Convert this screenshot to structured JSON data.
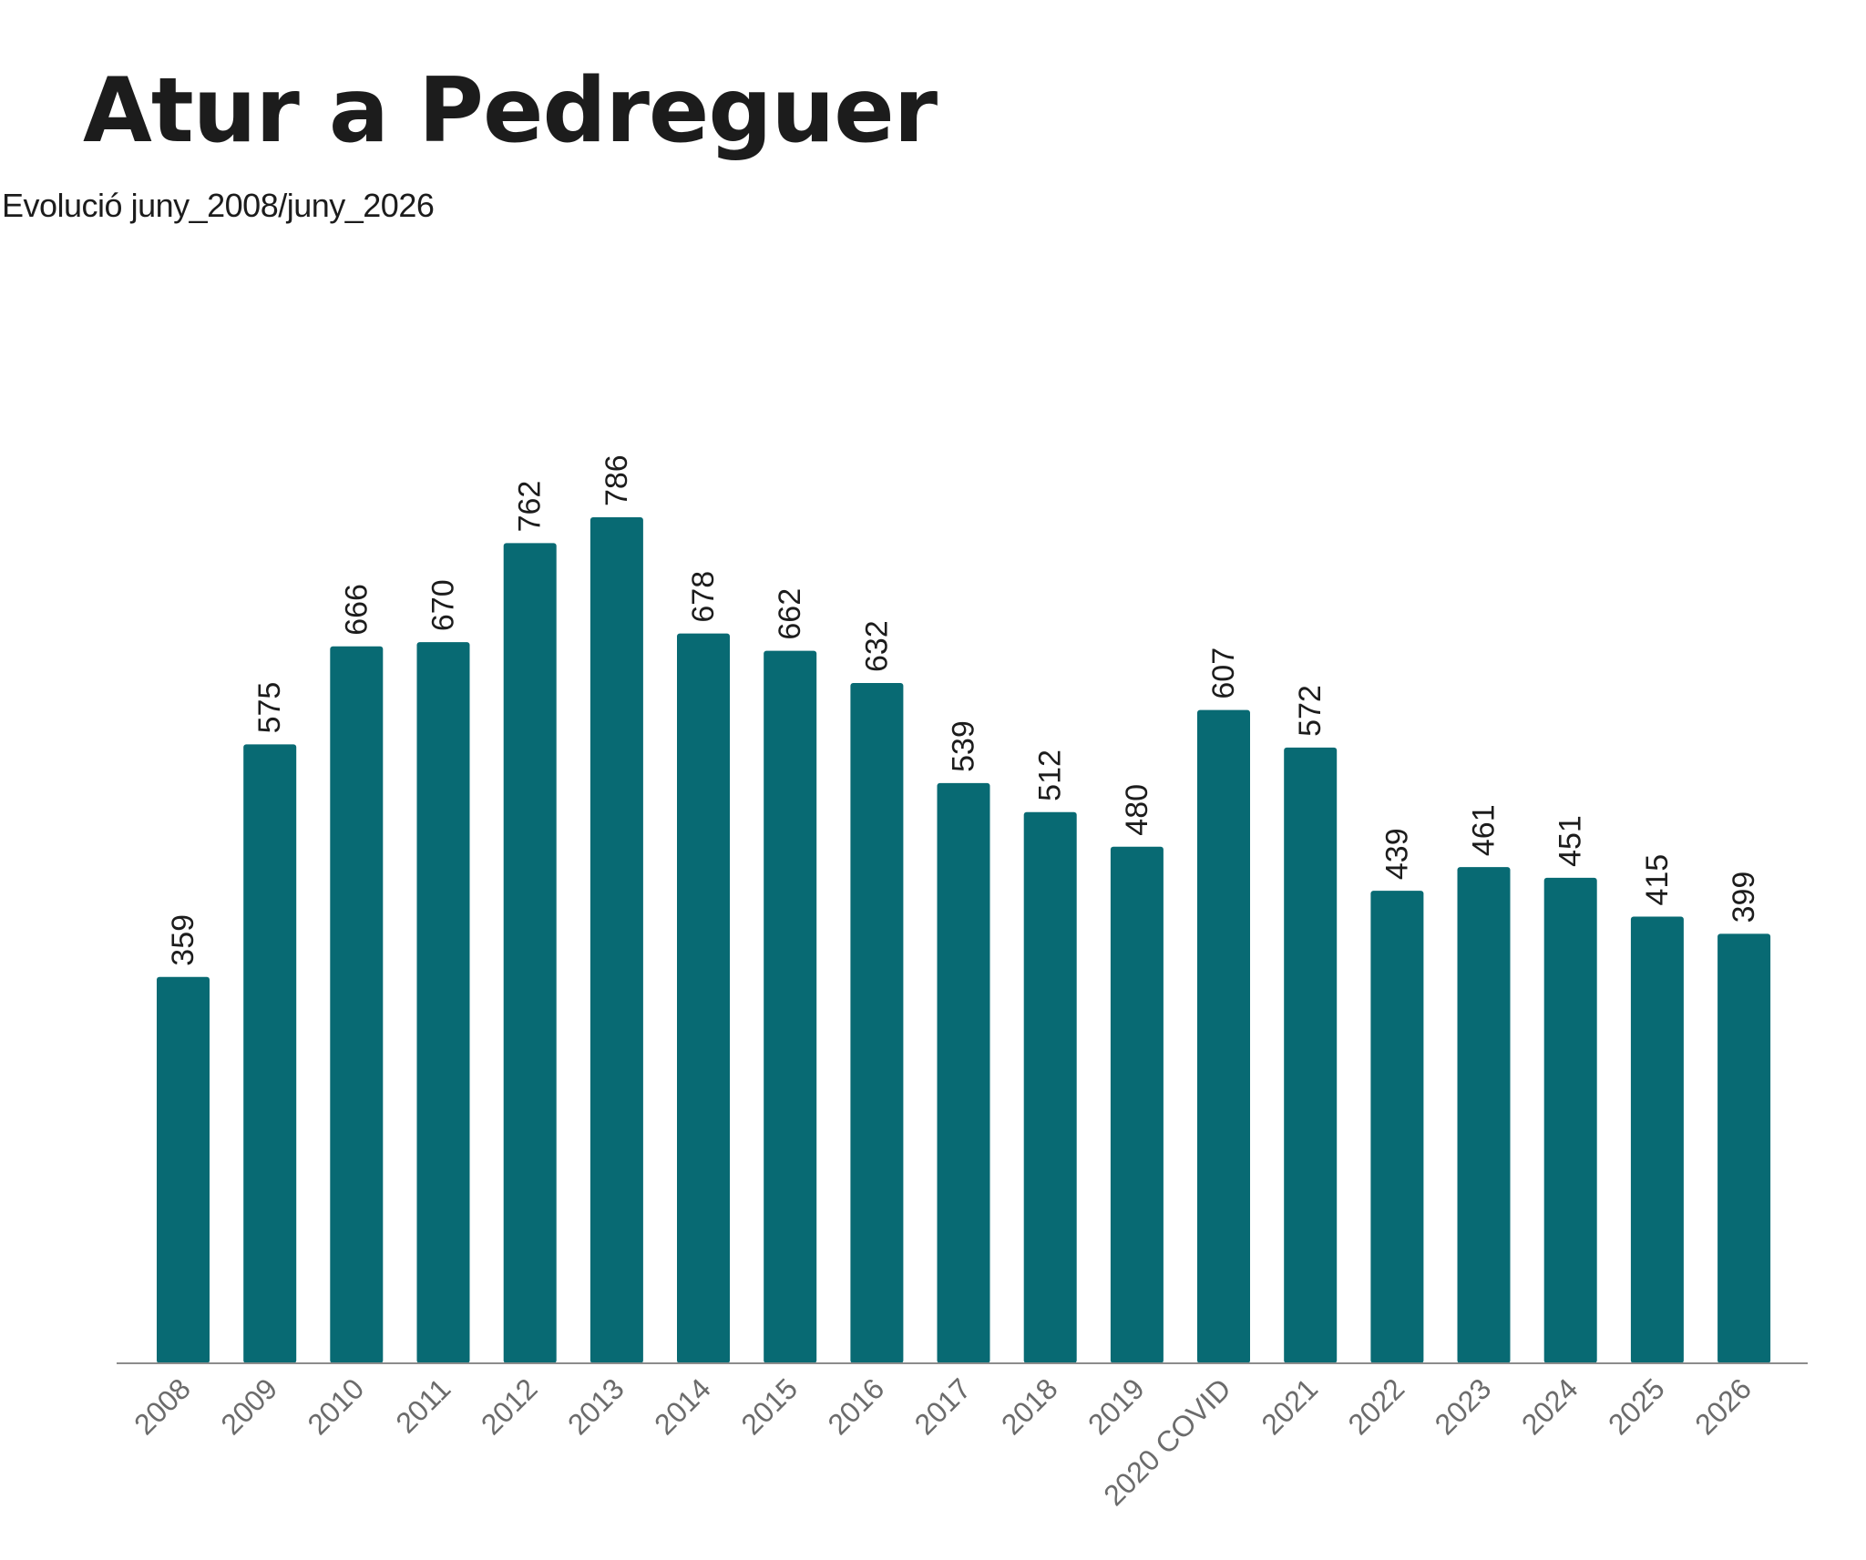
{
  "chart_data": {
    "type": "bar",
    "title": "Atur a Pedreguer",
    "subtitle": "Evolució juny_2008/juny_2026",
    "xlabel": "",
    "ylabel": "",
    "categories": [
      "2008",
      "2009",
      "2010",
      "2011",
      "2012",
      "2013",
      "2014",
      "2015",
      "2016",
      "2017",
      "2018",
      "2019",
      "2020 COVID",
      "2021",
      "2022",
      "2023",
      "2024",
      "2025",
      "2026"
    ],
    "values": [
      359,
      575,
      666,
      670,
      762,
      786,
      678,
      662,
      632,
      539,
      512,
      480,
      607,
      572,
      439,
      461,
      451,
      415,
      399
    ],
    "ylim": [
      0,
      786
    ],
    "grid": false,
    "legend": "none",
    "bar_color": "#086a73",
    "axis_color": "#8c8c8c"
  }
}
